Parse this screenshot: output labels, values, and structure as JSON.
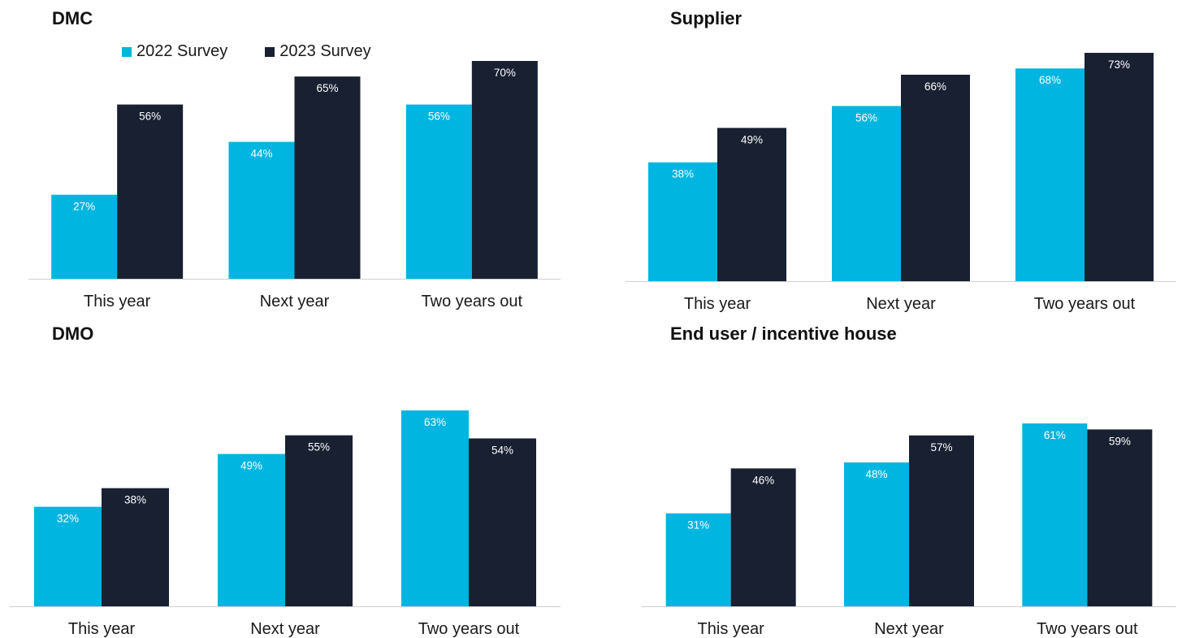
{
  "colors": {
    "survey_2022": "#00b5e0",
    "survey_2023": "#182032",
    "axis_line": "#d0d0d0"
  },
  "legend": {
    "items": [
      "2022 Survey",
      "2023 Survey"
    ]
  },
  "chart_data": [
    {
      "type": "bar",
      "title": "DMC",
      "categories": [
        "This year",
        "Next year",
        "Two years out"
      ],
      "series": [
        {
          "name": "2022 Survey",
          "values": [
            27,
            44,
            56
          ]
        },
        {
          "name": "2023 Survey",
          "values": [
            56,
            65,
            70
          ]
        }
      ],
      "unit": "%",
      "ylim": [
        0,
        75
      ],
      "grid": false,
      "legend": "top-left"
    },
    {
      "type": "bar",
      "title": "Supplier",
      "categories": [
        "This year",
        "Next year",
        "Two years out"
      ],
      "series": [
        {
          "name": "2022 Survey",
          "values": [
            38,
            56,
            68
          ]
        },
        {
          "name": "2023 Survey",
          "values": [
            49,
            66,
            73
          ]
        }
      ],
      "unit": "%",
      "ylim": [
        0,
        75
      ],
      "grid": false
    },
    {
      "type": "bar",
      "title": "DMO",
      "categories": [
        "This year",
        "Next year",
        "Two years out"
      ],
      "series": [
        {
          "name": "2022 Survey",
          "values": [
            32,
            49,
            63
          ]
        },
        {
          "name": "2023 Survey",
          "values": [
            38,
            55,
            54
          ]
        }
      ],
      "unit": "%",
      "ylim": [
        0,
        75
      ],
      "grid": false
    },
    {
      "type": "bar",
      "title": "End user / incentive house",
      "categories": [
        "This year",
        "Next year",
        "Two years out"
      ],
      "series": [
        {
          "name": "2022 Survey",
          "values": [
            31,
            48,
            61
          ]
        },
        {
          "name": "2023 Survey",
          "values": [
            46,
            57,
            59
          ]
        }
      ],
      "unit": "%",
      "ylim": [
        0,
        75
      ],
      "grid": false
    }
  ]
}
